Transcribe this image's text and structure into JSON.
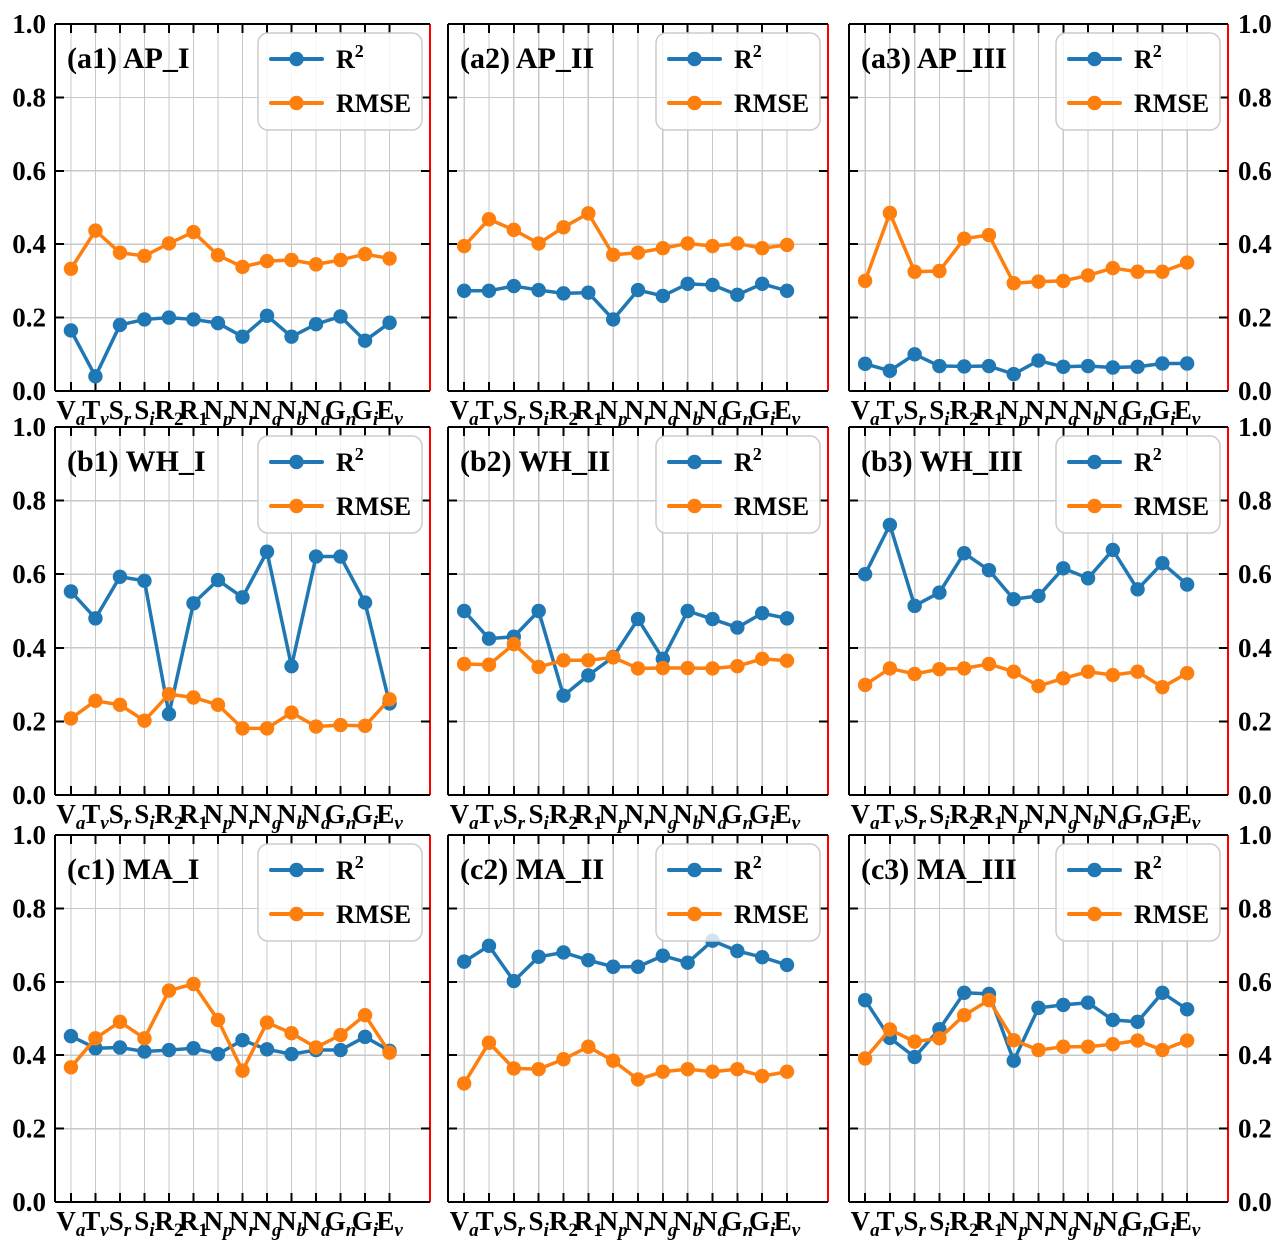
{
  "chart_data": {
    "type": "line",
    "grid": true,
    "ylim": [
      0.0,
      1.0
    ],
    "ytick_labels": [
      "0.0",
      "0.2",
      "0.4",
      "0.6",
      "0.8",
      "1.0"
    ],
    "legend_position": "upper right",
    "legend_entries": [
      "R²",
      "RMSE"
    ],
    "colors": {
      "R²": "#1f77b4",
      "RMSE": "#ff7f0e"
    },
    "axis_style": {
      "right_spine_color": "#ff0000",
      "grid_color": "#c8c8c8",
      "spine_color": "#000000"
    },
    "categories": [
      "Va",
      "Tv",
      "Sr",
      "Si",
      "R2",
      "R1",
      "Np",
      "Nr",
      "Ng",
      "Nb",
      "Nd",
      "Gn",
      "Gi",
      "Ev"
    ],
    "category_labels": [
      [
        "V",
        "a"
      ],
      [
        "T",
        "v"
      ],
      [
        "S",
        "r"
      ],
      [
        "S",
        "i"
      ],
      [
        "R",
        "2"
      ],
      [
        "R",
        "1"
      ],
      [
        "N",
        "p"
      ],
      [
        "N",
        "r"
      ],
      [
        "N",
        "g"
      ],
      [
        "N",
        "b"
      ],
      [
        "N",
        "d"
      ],
      [
        "G",
        "n"
      ],
      [
        "G",
        "i"
      ],
      [
        "E",
        "v"
      ]
    ],
    "panels": [
      {
        "id": "a1",
        "label": "(a1)",
        "title": "AP_I",
        "series": [
          {
            "name": "R²",
            "values": [
              0.165,
              0.04,
              0.18,
              0.195,
              0.2,
              0.195,
              0.185,
              0.148,
              0.205,
              0.148,
              0.182,
              0.203,
              0.137,
              0.186
            ]
          },
          {
            "name": "RMSE",
            "values": [
              0.333,
              0.437,
              0.377,
              0.368,
              0.402,
              0.433,
              0.37,
              0.338,
              0.354,
              0.357,
              0.345,
              0.357,
              0.373,
              0.361
            ]
          }
        ]
      },
      {
        "id": "a2",
        "label": "(a2)",
        "title": "AP_II",
        "series": [
          {
            "name": "R²",
            "values": [
              0.273,
              0.273,
              0.286,
              0.275,
              0.266,
              0.268,
              0.195,
              0.275,
              0.259,
              0.292,
              0.289,
              0.262,
              0.292,
              0.273
            ]
          },
          {
            "name": "RMSE",
            "values": [
              0.395,
              0.468,
              0.439,
              0.402,
              0.446,
              0.484,
              0.371,
              0.377,
              0.389,
              0.402,
              0.395,
              0.402,
              0.389,
              0.398
            ]
          }
        ]
      },
      {
        "id": "a3",
        "label": "(a3)",
        "title": "AP_III",
        "series": [
          {
            "name": "R²",
            "values": [
              0.074,
              0.055,
              0.1,
              0.068,
              0.067,
              0.068,
              0.046,
              0.083,
              0.066,
              0.068,
              0.064,
              0.066,
              0.075,
              0.075
            ]
          },
          {
            "name": "RMSE",
            "values": [
              0.3,
              0.485,
              0.325,
              0.327,
              0.415,
              0.425,
              0.294,
              0.298,
              0.3,
              0.315,
              0.335,
              0.325,
              0.325,
              0.35
            ]
          }
        ]
      },
      {
        "id": "b1",
        "label": "(b1)",
        "title": "WH_I",
        "series": [
          {
            "name": "R²",
            "values": [
              0.553,
              0.48,
              0.593,
              0.582,
              0.22,
              0.521,
              0.584,
              0.537,
              0.661,
              0.35,
              0.648,
              0.648,
              0.523,
              0.249
            ]
          },
          {
            "name": "RMSE",
            "values": [
              0.208,
              0.256,
              0.245,
              0.202,
              0.274,
              0.265,
              0.245,
              0.181,
              0.181,
              0.224,
              0.186,
              0.19,
              0.188,
              0.26
            ]
          }
        ]
      },
      {
        "id": "b2",
        "label": "(b2)",
        "title": "WH_II",
        "series": [
          {
            "name": "R²",
            "values": [
              0.5,
              0.425,
              0.43,
              0.5,
              0.27,
              0.325,
              0.375,
              0.478,
              0.37,
              0.5,
              0.478,
              0.455,
              0.494,
              0.48
            ]
          },
          {
            "name": "RMSE",
            "values": [
              0.356,
              0.354,
              0.41,
              0.348,
              0.366,
              0.366,
              0.374,
              0.344,
              0.345,
              0.345,
              0.344,
              0.35,
              0.37,
              0.365
            ]
          }
        ]
      },
      {
        "id": "b3",
        "label": "(b3)",
        "title": "WH_III",
        "series": [
          {
            "name": "R²",
            "values": [
              0.6,
              0.734,
              0.514,
              0.55,
              0.657,
              0.611,
              0.532,
              0.541,
              0.616,
              0.589,
              0.666,
              0.559,
              0.63,
              0.572
            ]
          },
          {
            "name": "RMSE",
            "values": [
              0.299,
              0.344,
              0.329,
              0.342,
              0.344,
              0.356,
              0.335,
              0.296,
              0.317,
              0.335,
              0.326,
              0.335,
              0.293,
              0.331
            ]
          }
        ]
      },
      {
        "id": "c1",
        "label": "(c1)",
        "title": "MA_I",
        "series": [
          {
            "name": "R²",
            "values": [
              0.452,
              0.419,
              0.421,
              0.41,
              0.414,
              0.419,
              0.403,
              0.441,
              0.416,
              0.403,
              0.414,
              0.414,
              0.45,
              0.412
            ]
          },
          {
            "name": "RMSE",
            "values": [
              0.367,
              0.446,
              0.491,
              0.446,
              0.576,
              0.594,
              0.496,
              0.358,
              0.489,
              0.46,
              0.421,
              0.455,
              0.509,
              0.407
            ]
          }
        ]
      },
      {
        "id": "c2",
        "label": "(c2)",
        "title": "MA_II",
        "series": [
          {
            "name": "R²",
            "values": [
              0.655,
              0.698,
              0.602,
              0.668,
              0.68,
              0.659,
              0.641,
              0.641,
              0.671,
              0.652,
              0.712,
              0.684,
              0.667,
              0.646
            ]
          },
          {
            "name": "RMSE",
            "values": [
              0.323,
              0.434,
              0.364,
              0.362,
              0.389,
              0.423,
              0.385,
              0.334,
              0.355,
              0.362,
              0.355,
              0.362,
              0.343,
              0.355
            ]
          }
        ]
      },
      {
        "id": "c3",
        "label": "(c3)",
        "title": "MA_III",
        "series": [
          {
            "name": "R²",
            "values": [
              0.55,
              0.447,
              0.395,
              0.471,
              0.57,
              0.567,
              0.385,
              0.529,
              0.537,
              0.543,
              0.496,
              0.491,
              0.57,
              0.525
            ]
          },
          {
            "name": "RMSE",
            "values": [
              0.391,
              0.47,
              0.437,
              0.446,
              0.509,
              0.55,
              0.441,
              0.414,
              0.423,
              0.423,
              0.43,
              0.44,
              0.414,
              0.44
            ]
          }
        ]
      }
    ]
  }
}
